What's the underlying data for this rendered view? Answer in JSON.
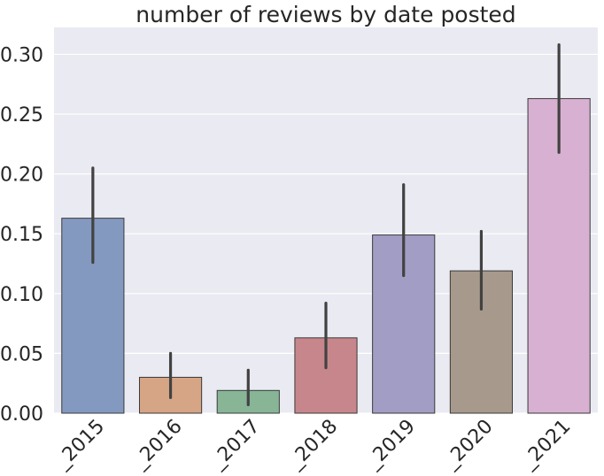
{
  "chart_data": {
    "type": "bar",
    "title": "number of reviews by date posted",
    "xlabel": "",
    "ylabel": "",
    "categories": [
      "_2015",
      "_2016",
      "_2017",
      "_2018",
      "_2019",
      "_2020",
      "_2021"
    ],
    "values": [
      0.163,
      0.03,
      0.019,
      0.063,
      0.149,
      0.119,
      0.263
    ],
    "error_low": [
      0.126,
      0.013,
      0.007,
      0.038,
      0.115,
      0.087,
      0.218
    ],
    "error_high": [
      0.205,
      0.05,
      0.036,
      0.092,
      0.191,
      0.152,
      0.308
    ],
    "colors": [
      "#8499bf",
      "#d6a585",
      "#87b596",
      "#c7868b",
      "#a29dc4",
      "#a79a8c",
      "#d8b0d1"
    ],
    "ylim": [
      0,
      0.3225
    ],
    "yticks": [
      0.0,
      0.05,
      0.1,
      0.15,
      0.2,
      0.25,
      0.3
    ],
    "ytick_labels": [
      "0.00",
      "0.05",
      "0.10",
      "0.15",
      "0.20",
      "0.25",
      "0.30"
    ],
    "grid": true,
    "background": "#eaeaf2"
  }
}
